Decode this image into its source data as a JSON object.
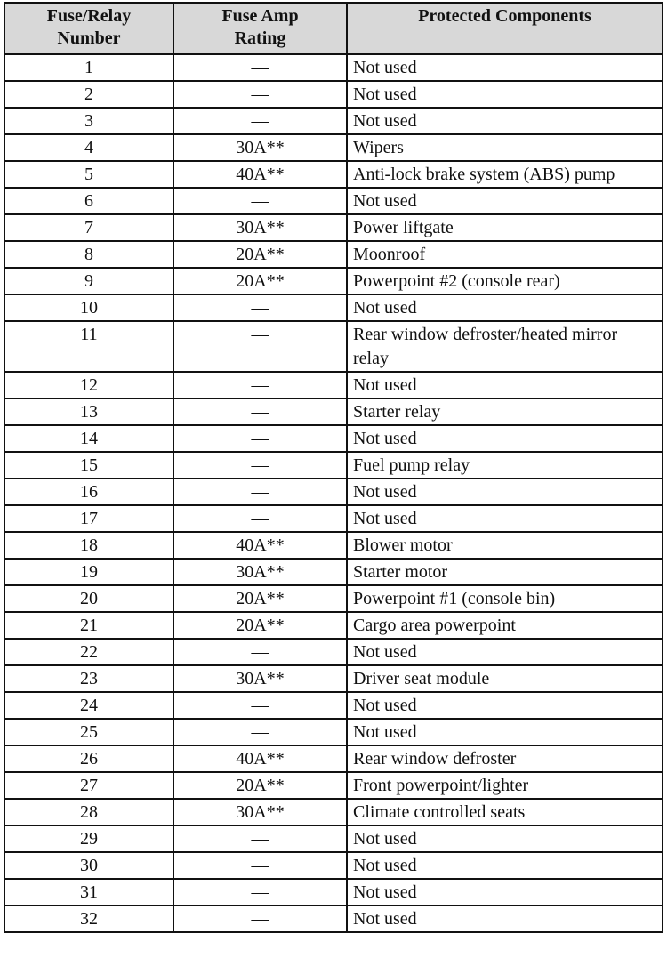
{
  "table": {
    "headers": [
      "Fuse/Relay\nNumber",
      "Fuse Amp\nRating",
      "Protected Components"
    ],
    "rows": [
      [
        "1",
        "—",
        "Not used"
      ],
      [
        "2",
        "—",
        "Not used"
      ],
      [
        "3",
        "—",
        "Not used"
      ],
      [
        "4",
        "30A**",
        "Wipers"
      ],
      [
        "5",
        "40A**",
        "Anti-lock brake system (ABS) pump"
      ],
      [
        "6",
        "—",
        "Not used"
      ],
      [
        "7",
        "30A**",
        "Power liftgate"
      ],
      [
        "8",
        "20A**",
        "Moonroof"
      ],
      [
        "9",
        "20A**",
        "Powerpoint #2 (console rear)"
      ],
      [
        "10",
        "—",
        "Not used"
      ],
      [
        "11",
        "—",
        "Rear window defroster/heated mirror relay"
      ],
      [
        "12",
        "—",
        "Not used"
      ],
      [
        "13",
        "—",
        "Starter relay"
      ],
      [
        "14",
        "—",
        "Not used"
      ],
      [
        "15",
        "—",
        "Fuel pump relay"
      ],
      [
        "16",
        "—",
        "Not used"
      ],
      [
        "17",
        "—",
        "Not used"
      ],
      [
        "18",
        "40A**",
        "Blower motor"
      ],
      [
        "19",
        "30A**",
        "Starter motor"
      ],
      [
        "20",
        "20A**",
        "Powerpoint #1 (console bin)"
      ],
      [
        "21",
        "20A**",
        "Cargo area powerpoint"
      ],
      [
        "22",
        "—",
        "Not used"
      ],
      [
        "23",
        "30A**",
        "Driver seat module"
      ],
      [
        "24",
        "—",
        "Not used"
      ],
      [
        "25",
        "—",
        "Not used"
      ],
      [
        "26",
        "40A**",
        "Rear window defroster"
      ],
      [
        "27",
        "20A**",
        "Front powerpoint/lighter"
      ],
      [
        "28",
        "30A**",
        "Climate controlled seats"
      ],
      [
        "29",
        "—",
        "Not used"
      ],
      [
        "30",
        "—",
        "Not used"
      ],
      [
        "31",
        "—",
        "Not used"
      ],
      [
        "32",
        "—",
        "Not used"
      ]
    ]
  }
}
